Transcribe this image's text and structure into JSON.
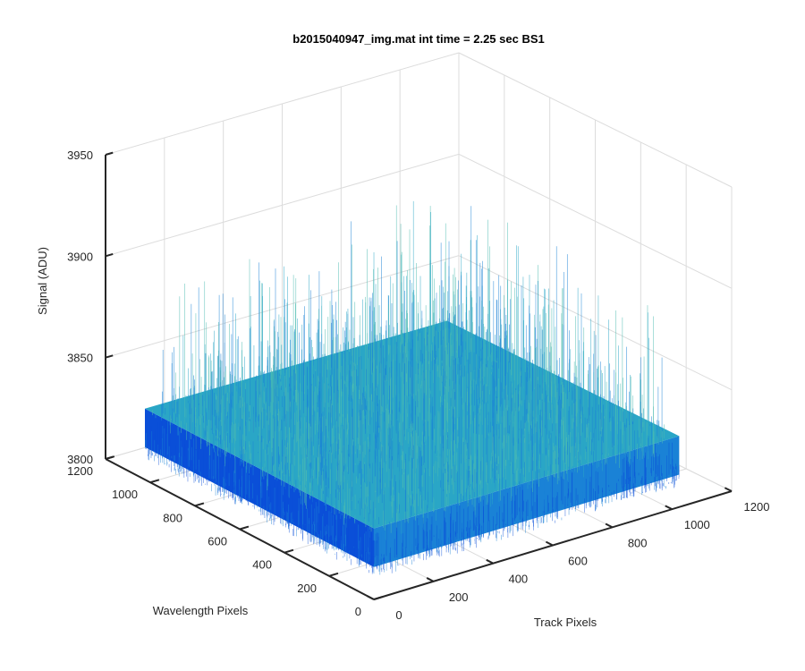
{
  "chart_data": {
    "type": "surface",
    "title": "b2015040947_img.mat int time = 2.25 sec   BS1",
    "xlabel": "Track Pixels",
    "ylabel": "Wavelength Pixels",
    "zlabel": "Signal (ADU)",
    "x_ticks": [
      "0",
      "200",
      "400",
      "600",
      "800",
      "1000",
      "1200"
    ],
    "y_ticks": [
      "0",
      "200",
      "400",
      "600",
      "800",
      "1000",
      "1200"
    ],
    "z_ticks": [
      "3800",
      "3850",
      "3900",
      "3950"
    ],
    "xlim": [
      0,
      1200
    ],
    "ylim": [
      0,
      1200
    ],
    "zlim": [
      3800,
      3950
    ],
    "surface": {
      "x_range": [
        0,
        1024
      ],
      "y_range": [
        0,
        1024
      ],
      "mean_signal": 3835,
      "noise_range": [
        3812,
        3905
      ],
      "colormap": [
        "#0a4fd8",
        "#1a82d6",
        "#2aa6c6",
        "#4dbcb0"
      ]
    },
    "grid": true
  }
}
